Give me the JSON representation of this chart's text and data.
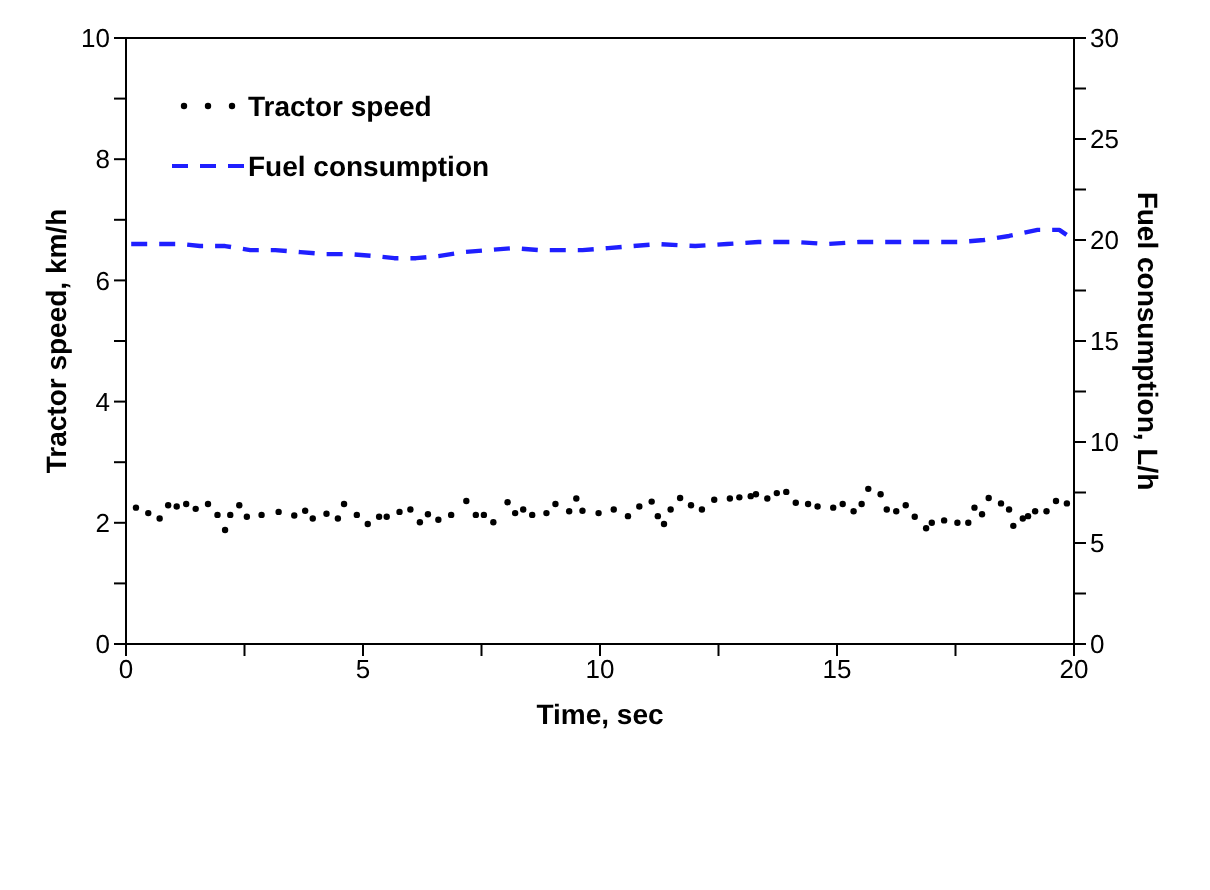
{
  "chart_data": {
    "type": "line",
    "xlabel": "Time, sec",
    "ylabel": "Tractor speed, km/h",
    "y2label": "Fuel consumption, L/h",
    "xlim": [
      0,
      20
    ],
    "xticks": [
      0,
      {
        "value": 2.5,
        "label": null
      },
      5,
      {
        "value": 7.5,
        "label": null
      },
      10,
      {
        "value": 12.5,
        "label": null
      },
      15,
      {
        "value": 17.5,
        "label": null
      },
      20
    ],
    "ylim": [
      0,
      10
    ],
    "yticks": [
      0,
      {
        "value": 1,
        "label": null
      },
      2,
      {
        "value": 3,
        "label": null
      },
      4,
      {
        "value": 5,
        "label": null
      },
      6,
      {
        "value": 7,
        "label": null
      },
      8,
      {
        "value": 9,
        "label": null
      },
      10
    ],
    "y2lim": [
      0,
      30
    ],
    "y2ticks": [
      0,
      {
        "value": 2.5,
        "label": null
      },
      5,
      {
        "value": 7.5,
        "label": null
      },
      10,
      {
        "value": 12.5,
        "label": null
      },
      15,
      {
        "value": 17.5,
        "label": null
      },
      20,
      {
        "value": 22.5,
        "label": null
      },
      25,
      {
        "value": 27.5,
        "label": null
      },
      30
    ],
    "legend": "top left",
    "grid": false,
    "series": [
      {
        "name": "Tractor speed",
        "type": "scatter",
        "marker": "circle",
        "color": "#000000",
        "x": [
          0.21,
          0.47,
          0.71,
          0.89,
          1.07,
          1.27,
          1.47,
          1.73,
          1.93,
          2.09,
          2.2,
          2.39,
          2.55,
          2.86,
          3.22,
          3.55,
          3.78,
          3.94,
          4.23,
          4.47,
          4.6,
          4.87,
          5.1,
          5.34,
          5.5,
          5.77,
          6.0,
          6.2,
          6.37,
          6.59,
          6.86,
          7.18,
          7.38,
          7.55,
          7.75,
          8.05,
          8.21,
          8.38,
          8.57,
          8.87,
          9.06,
          9.35,
          9.5,
          9.63,
          9.97,
          10.29,
          10.59,
          10.83,
          11.09,
          11.22,
          11.35,
          11.49,
          11.69,
          11.92,
          12.15,
          12.41,
          12.74,
          12.94,
          13.18,
          13.29,
          13.53,
          13.73,
          13.93,
          14.13,
          14.39,
          14.59,
          14.92,
          15.12,
          15.35,
          15.52,
          15.66,
          15.92,
          16.05,
          16.25,
          16.45,
          16.64,
          16.88,
          17.0,
          17.26,
          17.54,
          17.77,
          17.9,
          18.06,
          18.2,
          18.46,
          18.63,
          18.72,
          18.92,
          19.03,
          19.18,
          19.42,
          19.62,
          19.85
        ],
        "values": [
          2.25,
          2.16,
          2.07,
          2.29,
          2.27,
          2.31,
          2.23,
          2.31,
          2.13,
          1.88,
          2.13,
          2.29,
          2.1,
          2.13,
          2.18,
          2.12,
          2.2,
          2.07,
          2.15,
          2.07,
          2.31,
          2.13,
          1.98,
          2.1,
          2.1,
          2.18,
          2.22,
          2.01,
          2.14,
          2.05,
          2.13,
          2.36,
          2.13,
          2.13,
          2.01,
          2.34,
          2.16,
          2.22,
          2.13,
          2.16,
          2.31,
          2.19,
          2.4,
          2.2,
          2.16,
          2.22,
          2.11,
          2.27,
          2.35,
          2.11,
          1.98,
          2.22,
          2.41,
          2.29,
          2.22,
          2.38,
          2.4,
          2.42,
          2.44,
          2.47,
          2.4,
          2.49,
          2.51,
          2.33,
          2.31,
          2.27,
          2.25,
          2.31,
          2.19,
          2.31,
          2.56,
          2.47,
          2.22,
          2.19,
          2.29,
          2.1,
          1.91,
          2.0,
          2.04,
          2.0,
          2.0,
          2.25,
          2.14,
          2.41,
          2.32,
          2.22,
          1.95,
          2.07,
          2.11,
          2.19,
          2.19,
          2.36,
          2.32
        ]
      },
      {
        "name": "Fuel consumption",
        "axis": "y2",
        "line_style": "dashed",
        "marker": "none",
        "color": "#1f1fff",
        "x": [
          0.11,
          0.63,
          1.17,
          1.56,
          2.09,
          2.62,
          3.15,
          3.68,
          4.21,
          4.74,
          5.26,
          5.66,
          6.12,
          6.59,
          7.12,
          7.65,
          8.18,
          8.71,
          9.11,
          9.63,
          10.17,
          10.69,
          11.22,
          12.01,
          12.68,
          13.34,
          14.14,
          14.8,
          15.46,
          16.25,
          16.91,
          17.57,
          18.1,
          18.63,
          19.23,
          19.69,
          20
        ],
        "values": [
          19.8,
          19.8,
          19.8,
          19.7,
          19.7,
          19.5,
          19.5,
          19.4,
          19.3,
          19.3,
          19.2,
          19.1,
          19.1,
          19.2,
          19.4,
          19.5,
          19.6,
          19.5,
          19.5,
          19.5,
          19.6,
          19.7,
          19.8,
          19.7,
          19.8,
          19.9,
          19.9,
          19.8,
          19.9,
          19.9,
          19.9,
          19.9,
          20.0,
          20.2,
          20.5,
          20.5,
          20.0
        ]
      }
    ]
  }
}
